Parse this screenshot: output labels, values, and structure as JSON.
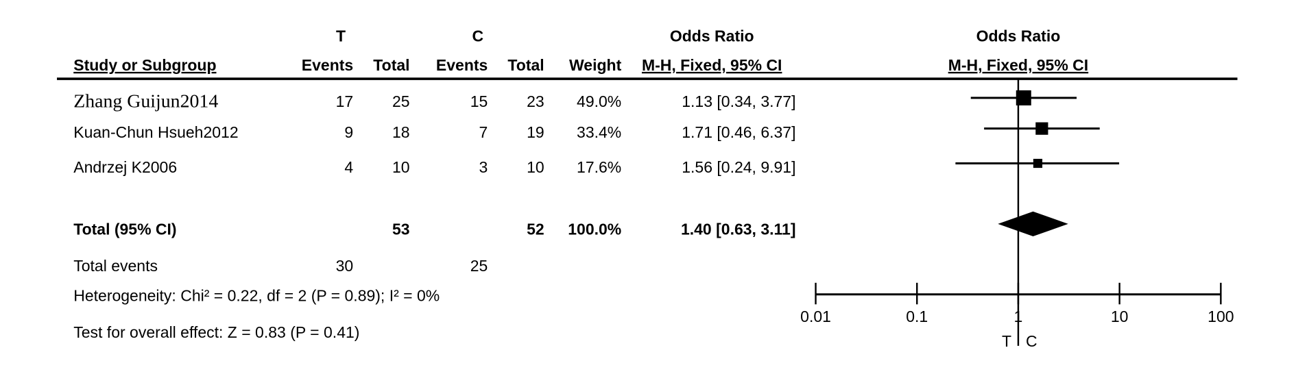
{
  "chart_data": {
    "type": "forest",
    "group_headers": {
      "t": "T",
      "c": "C",
      "or_table": "Odds Ratio",
      "or_plot": "Odds Ratio"
    },
    "column_headers": {
      "study": "Study or Subgroup",
      "t_events": "Events",
      "t_total": "Total",
      "c_events": "Events",
      "c_total": "Total",
      "weight": "Weight",
      "or_table": "M-H, Fixed, 95% CI",
      "or_plot": "M-H, Fixed, 95% CI"
    },
    "studies": [
      {
        "name": "Zhang Guijun2014",
        "t_events": 17,
        "t_total": 25,
        "c_events": 15,
        "c_total": 23,
        "weight": {
          "value": 49.0,
          "label": "49.0%"
        },
        "or": 1.13,
        "ci": [
          0.34,
          3.77
        ],
        "or_label": "1.13 [0.34, 3.77]"
      },
      {
        "name": "Kuan-Chun Hsueh2012",
        "t_events": 9,
        "t_total": 18,
        "c_events": 7,
        "c_total": 19,
        "weight": {
          "value": 33.4,
          "label": "33.4%"
        },
        "or": 1.71,
        "ci": [
          0.46,
          6.37
        ],
        "or_label": "1.71 [0.46, 6.37]"
      },
      {
        "name": "Andrzej K2006",
        "t_events": 4,
        "t_total": 10,
        "c_events": 3,
        "c_total": 10,
        "weight": {
          "value": 17.6,
          "label": "17.6%"
        },
        "or": 1.56,
        "ci": [
          0.24,
          9.91
        ],
        "or_label": "1.56 [0.24, 9.91]"
      }
    ],
    "total": {
      "name": "Total (95% CI)",
      "t_total": 53,
      "c_total": 52,
      "weight": {
        "value": 100.0,
        "label": "100.0%"
      },
      "or": 1.4,
      "ci": [
        0.63,
        3.11
      ],
      "or_label": "1.40 [0.63, 3.11]"
    },
    "total_events": {
      "name": "Total events",
      "t": 30,
      "c": 25
    },
    "heterogeneity": "Heterogeneity: Chi² = 0.22, df = 2 (P = 0.89); I² = 0%",
    "overall_effect": "Test for overall effect: Z = 0.83 (P = 0.41)",
    "xscale": "log",
    "xlim": [
      0.01,
      100
    ],
    "xticks": [
      0.01,
      0.1,
      1,
      10,
      100
    ],
    "favours": [
      "T",
      "C"
    ]
  }
}
